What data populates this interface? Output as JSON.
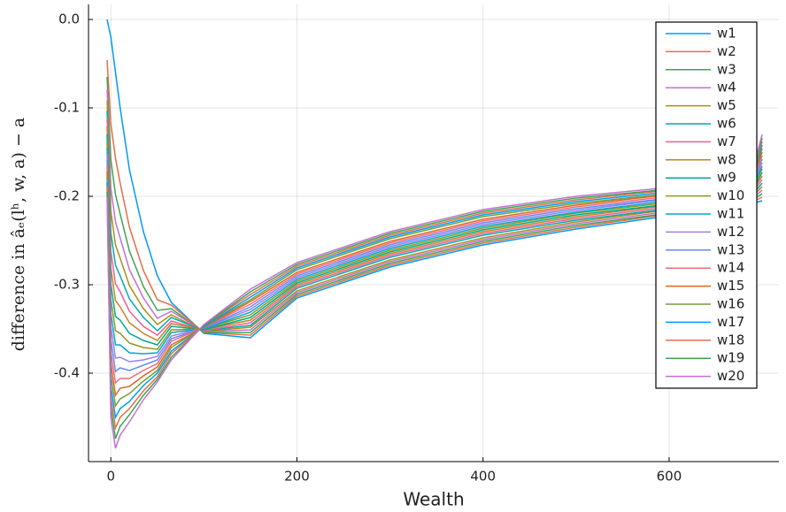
{
  "chart_data": {
    "type": "line",
    "xlabel": "Wealth",
    "ylabel": "difference in âₑ(lʰ, w, a) − a",
    "x": [
      -4,
      0,
      5,
      10,
      20,
      35,
      50,
      65,
      100,
      150,
      200,
      300,
      400,
      500,
      600,
      690,
      700
    ],
    "xlim": [
      -24,
      718
    ],
    "xticks": [
      0,
      200,
      400,
      600
    ],
    "ylim": [
      -0.5,
      0.017
    ],
    "yticks": [
      {
        "value": 0,
        "label": "0.0"
      },
      -0.1,
      -0.2,
      -0.3,
      -0.4
    ],
    "grid": true,
    "legend": "top-right",
    "series": [
      {
        "name": "w1",
        "color": "#009AFA",
        "values": [
          0,
          -0.02,
          -0.06,
          -0.1,
          -0.17,
          -0.24,
          -0.29,
          -0.32,
          -0.355,
          -0.36,
          -0.315,
          -0.28,
          -0.255,
          -0.237,
          -0.222,
          -0.208,
          -0.205
        ]
      },
      {
        "name": "w2",
        "color": "#E36F47",
        "values": [
          -0.046,
          -0.118,
          -0.157,
          -0.185,
          -0.235,
          -0.284,
          -0.317,
          -0.323,
          -0.354,
          -0.357,
          -0.313,
          -0.278,
          -0.253,
          -0.235,
          -0.22,
          -0.206,
          -0.201
        ]
      },
      {
        "name": "w3",
        "color": "#3EA44E",
        "values": [
          -0.065,
          -0.159,
          -0.198,
          -0.22,
          -0.262,
          -0.302,
          -0.329,
          -0.327,
          -0.354,
          -0.354,
          -0.311,
          -0.276,
          -0.251,
          -0.233,
          -0.219,
          -0.204,
          -0.197
        ]
      },
      {
        "name": "w4",
        "color": "#C371D2",
        "values": [
          -0.079,
          -0.191,
          -0.229,
          -0.247,
          -0.283,
          -0.315,
          -0.338,
          -0.33,
          -0.353,
          -0.351,
          -0.309,
          -0.274,
          -0.249,
          -0.231,
          -0.217,
          -0.202,
          -0.193
        ]
      },
      {
        "name": "w5",
        "color": "#AC8E18",
        "values": [
          -0.092,
          -0.217,
          -0.255,
          -0.27,
          -0.301,
          -0.327,
          -0.345,
          -0.334,
          -0.353,
          -0.348,
          -0.307,
          -0.272,
          -0.247,
          -0.229,
          -0.215,
          -0.2,
          -0.189
        ]
      },
      {
        "name": "w6",
        "color": "#00AAAE",
        "values": [
          -0.103,
          -0.241,
          -0.278,
          -0.29,
          -0.316,
          -0.337,
          -0.352,
          -0.337,
          -0.352,
          -0.346,
          -0.304,
          -0.269,
          -0.244,
          -0.227,
          -0.214,
          -0.198,
          -0.185
        ]
      },
      {
        "name": "w7",
        "color": "#ED5E93",
        "values": [
          -0.112,
          -0.262,
          -0.299,
          -0.308,
          -0.33,
          -0.347,
          -0.357,
          -0.341,
          -0.352,
          -0.343,
          -0.302,
          -0.267,
          -0.242,
          -0.225,
          -0.212,
          -0.196,
          -0.181
        ]
      },
      {
        "name": "w8",
        "color": "#C68225",
        "values": [
          -0.121,
          -0.281,
          -0.318,
          -0.325,
          -0.343,
          -0.355,
          -0.363,
          -0.344,
          -0.351,
          -0.34,
          -0.3,
          -0.265,
          -0.24,
          -0.223,
          -0.21,
          -0.194,
          -0.177
        ]
      },
      {
        "name": "w9",
        "color": "#00A98D",
        "values": [
          -0.13,
          -0.299,
          -0.336,
          -0.34,
          -0.355,
          -0.363,
          -0.368,
          -0.347,
          -0.351,
          -0.337,
          -0.298,
          -0.263,
          -0.238,
          -0.221,
          -0.209,
          -0.192,
          -0.173
        ]
      },
      {
        "name": "w10",
        "color": "#8E971D",
        "values": [
          -0.138,
          -0.316,
          -0.352,
          -0.355,
          -0.366,
          -0.371,
          -0.373,
          -0.351,
          -0.35,
          -0.334,
          -0.296,
          -0.261,
          -0.236,
          -0.219,
          -0.207,
          -0.19,
          -0.169
        ]
      },
      {
        "name": "w11",
        "color": "#00A9CD",
        "values": [
          -0.145,
          -0.332,
          -0.368,
          -0.368,
          -0.377,
          -0.378,
          -0.377,
          -0.354,
          -0.35,
          -0.331,
          -0.294,
          -0.259,
          -0.234,
          -0.218,
          -0.205,
          -0.188,
          -0.166
        ]
      },
      {
        "name": "w12",
        "color": "#9B7FE9",
        "values": [
          -0.152,
          -0.347,
          -0.383,
          -0.382,
          -0.387,
          -0.385,
          -0.381,
          -0.358,
          -0.349,
          -0.328,
          -0.292,
          -0.257,
          -0.232,
          -0.216,
          -0.203,
          -0.186,
          -0.162
        ]
      },
      {
        "name": "w13",
        "color": "#618DF6",
        "values": [
          -0.159,
          -0.362,
          -0.398,
          -0.394,
          -0.397,
          -0.391,
          -0.385,
          -0.361,
          -0.349,
          -0.325,
          -0.29,
          -0.255,
          -0.23,
          -0.214,
          -0.202,
          -0.184,
          -0.158
        ]
      },
      {
        "name": "w14",
        "color": "#F16C7A",
        "values": [
          -0.165,
          -0.376,
          -0.411,
          -0.406,
          -0.406,
          -0.397,
          -0.389,
          -0.364,
          -0.348,
          -0.322,
          -0.288,
          -0.253,
          -0.228,
          -0.212,
          -0.2,
          -0.182,
          -0.154
        ]
      },
      {
        "name": "w15",
        "color": "#DD6524",
        "values": [
          -0.172,
          -0.389,
          -0.425,
          -0.417,
          -0.415,
          -0.403,
          -0.393,
          -0.368,
          -0.348,
          -0.319,
          -0.286,
          -0.251,
          -0.226,
          -0.21,
          -0.198,
          -0.18,
          -0.15
        ]
      },
      {
        "name": "w16",
        "color": "#6CA039",
        "values": [
          -0.178,
          -0.402,
          -0.437,
          -0.429,
          -0.423,
          -0.409,
          -0.397,
          -0.371,
          -0.347,
          -0.317,
          -0.283,
          -0.248,
          -0.223,
          -0.208,
          -0.197,
          -0.178,
          -0.146
        ]
      },
      {
        "name": "w17",
        "color": "#009AFA",
        "values": [
          -0.184,
          -0.415,
          -0.45,
          -0.44,
          -0.432,
          -0.414,
          -0.4,
          -0.375,
          -0.347,
          -0.314,
          -0.281,
          -0.246,
          -0.221,
          -0.206,
          -0.195,
          -0.176,
          -0.142
        ]
      },
      {
        "name": "w18",
        "color": "#E36F47",
        "values": [
          -0.189,
          -0.427,
          -0.462,
          -0.45,
          -0.44,
          -0.42,
          -0.404,
          -0.378,
          -0.346,
          -0.311,
          -0.279,
          -0.244,
          -0.219,
          -0.204,
          -0.193,
          -0.174,
          -0.138
        ]
      },
      {
        "name": "w19",
        "color": "#3EA44E",
        "values": [
          -0.195,
          -0.438,
          -0.474,
          -0.46,
          -0.447,
          -0.425,
          -0.407,
          -0.382,
          -0.346,
          -0.308,
          -0.277,
          -0.242,
          -0.217,
          -0.202,
          -0.192,
          -0.172,
          -0.134
        ]
      },
      {
        "name": "w20",
        "color": "#C371D2",
        "values": [
          -0.2,
          -0.45,
          -0.485,
          -0.47,
          -0.455,
          -0.43,
          -0.41,
          -0.385,
          -0.345,
          -0.305,
          -0.275,
          -0.24,
          -0.215,
          -0.2,
          -0.19,
          -0.17,
          -0.13
        ]
      }
    ]
  }
}
